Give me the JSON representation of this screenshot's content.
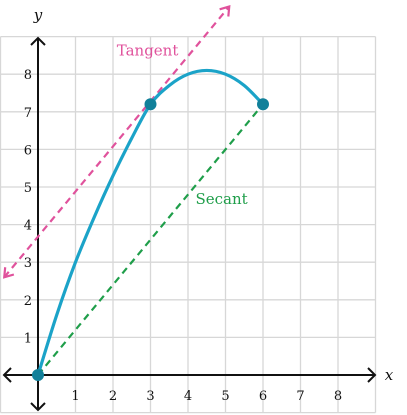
{
  "chart_data": {
    "type": "line",
    "xlabel": "x",
    "ylabel": "y",
    "xlim": [
      -1,
      9
    ],
    "ylim": [
      -1,
      9
    ],
    "x_ticks": [
      1,
      2,
      3,
      4,
      5,
      6,
      7,
      8
    ],
    "y_ticks": [
      1,
      2,
      3,
      4,
      5,
      6,
      7,
      8
    ],
    "grid": true,
    "curve": {
      "x": [
        0,
        0.5,
        1,
        1.5,
        2,
        2.5,
        3,
        3.5,
        4,
        4.5,
        5,
        5.5,
        6
      ],
      "y": [
        0,
        1.6,
        3.0,
        4.2,
        5.3,
        6.3,
        7.2,
        7.7,
        8.0,
        8.1,
        8.0,
        7.7,
        7.2
      ],
      "color": "#1ba3c8"
    },
    "points": [
      {
        "x": 0,
        "y": 0
      },
      {
        "x": 3,
        "y": 7.2
      },
      {
        "x": 6,
        "y": 7.2
      }
    ],
    "point_color": "#11809a",
    "tangent": {
      "label": "Tangent",
      "from": {
        "x": -0.9,
        "y": 2.6
      },
      "to": {
        "x": 5.1,
        "y": 9.8
      },
      "color": "#e0529c"
    },
    "secant": {
      "label": "Secant",
      "from": {
        "x": 0,
        "y": 0
      },
      "to": {
        "x": 6,
        "y": 7.2
      },
      "color": "#1f9e4a"
    },
    "annotations": [
      {
        "text": "Tangent",
        "x": 2.1,
        "y": 8.5,
        "color": "#e0529c"
      },
      {
        "text": "Secant",
        "x": 4.2,
        "y": 4.55,
        "color": "#1f9e4a"
      }
    ]
  }
}
